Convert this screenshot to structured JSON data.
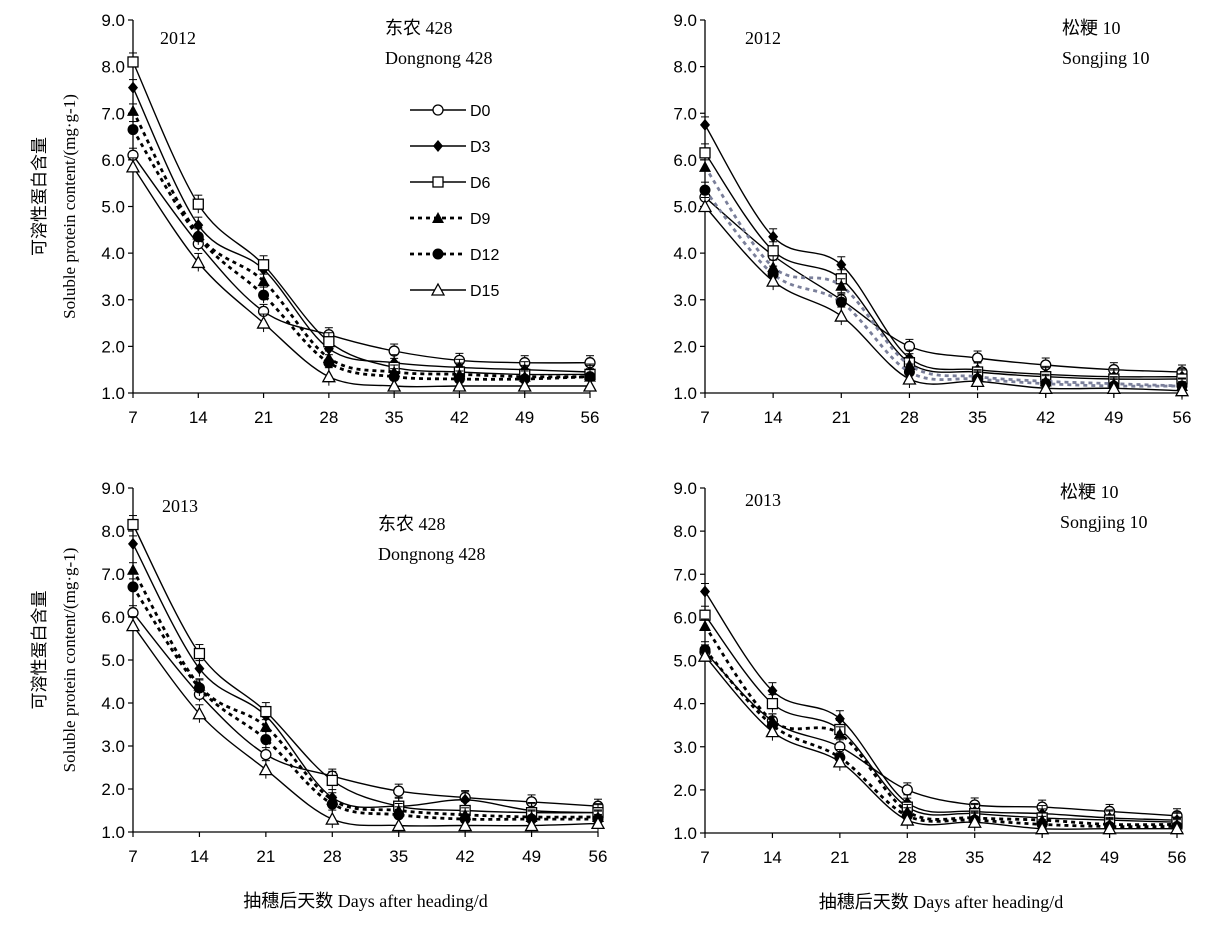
{
  "chart_data": [
    {
      "type": "line",
      "panel": "top-left",
      "year": "2012",
      "cultivar_cn": "东农 428",
      "cultivar_en": "Dongnong 428",
      "ylabel_cn": "可溶性蛋白含量",
      "ylabel_en": "Soluble protein content/(mg·g-1)",
      "xlabel": "",
      "x": [
        7,
        14,
        21,
        28,
        35,
        42,
        49,
        56
      ],
      "xlim": [
        7,
        56
      ],
      "ylim": [
        1.0,
        9.0
      ],
      "yticks": [
        "1.0",
        "2.0",
        "3.0",
        "4.0",
        "5.0",
        "6.0",
        "7.0",
        "8.0",
        "9.0"
      ],
      "legend": "top-center",
      "series": [
        {
          "name": "D0",
          "values": [
            6.1,
            4.2,
            2.75,
            2.25,
            1.9,
            1.7,
            1.65,
            1.65
          ]
        },
        {
          "name": "D3",
          "values": [
            7.55,
            4.6,
            3.65,
            1.95,
            1.65,
            1.55,
            1.5,
            1.45
          ]
        },
        {
          "name": "D6",
          "values": [
            8.1,
            5.05,
            3.75,
            2.1,
            1.55,
            1.45,
            1.4,
            1.4
          ]
        },
        {
          "name": "D9",
          "values": [
            7.05,
            4.4,
            3.4,
            1.75,
            1.45,
            1.4,
            1.35,
            1.35
          ]
        },
        {
          "name": "D12",
          "values": [
            6.65,
            4.35,
            3.1,
            1.65,
            1.35,
            1.3,
            1.3,
            1.35
          ]
        },
        {
          "name": "D15",
          "values": [
            5.85,
            3.8,
            2.5,
            1.35,
            1.15,
            1.15,
            1.15,
            1.15
          ]
        }
      ]
    },
    {
      "type": "line",
      "panel": "top-right",
      "year": "2012",
      "cultivar_cn": "松粳 10",
      "cultivar_en": "Songjing 10",
      "xlabel": "",
      "x": [
        7,
        14,
        21,
        28,
        35,
        42,
        49,
        56
      ],
      "xlim": [
        7,
        56
      ],
      "ylim": [
        1.0,
        9.0
      ],
      "yticks": [
        "1.0",
        "2.0",
        "3.0",
        "4.0",
        "5.0",
        "6.0",
        "7.0",
        "8.0",
        "9.0"
      ],
      "series": [
        {
          "name": "D0",
          "values": [
            5.2,
            3.95,
            3.0,
            2.0,
            1.75,
            1.6,
            1.5,
            1.45
          ]
        },
        {
          "name": "D3",
          "values": [
            6.75,
            4.35,
            3.75,
            1.75,
            1.5,
            1.4,
            1.35,
            1.35
          ]
        },
        {
          "name": "D6",
          "values": [
            6.15,
            4.05,
            3.45,
            1.65,
            1.45,
            1.35,
            1.3,
            1.3
          ]
        },
        {
          "name": "D9",
          "values": [
            5.85,
            3.7,
            3.3,
            1.6,
            1.35,
            1.25,
            1.2,
            1.15
          ]
        },
        {
          "name": "D12",
          "values": [
            5.35,
            3.55,
            2.95,
            1.45,
            1.3,
            1.2,
            1.15,
            1.15
          ]
        },
        {
          "name": "D15",
          "values": [
            5.0,
            3.4,
            2.65,
            1.3,
            1.25,
            1.1,
            1.1,
            1.05
          ]
        }
      ]
    },
    {
      "type": "line",
      "panel": "bottom-left",
      "year": "2013",
      "cultivar_cn": "东农 428",
      "cultivar_en": "Dongnong 428",
      "ylabel_cn": "可溶性蛋白含量",
      "ylabel_en": "Soluble protein content/(mg·g-1)",
      "xlabel": "抽穗后天数 Days after heading/d",
      "x": [
        7,
        14,
        21,
        28,
        35,
        42,
        49,
        56
      ],
      "xlim": [
        7,
        56
      ],
      "ylim": [
        1.0,
        9.0
      ],
      "yticks": [
        "1.0",
        "2.0",
        "3.0",
        "4.0",
        "5.0",
        "6.0",
        "7.0",
        "8.0",
        "9.0"
      ],
      "series": [
        {
          "name": "D0",
          "values": [
            6.1,
            4.2,
            2.8,
            2.3,
            1.95,
            1.8,
            1.7,
            1.6
          ]
        },
        {
          "name": "D3",
          "values": [
            7.7,
            4.8,
            3.7,
            1.8,
            1.6,
            1.75,
            1.5,
            1.45
          ]
        },
        {
          "name": "D6",
          "values": [
            8.15,
            5.15,
            3.8,
            2.2,
            1.6,
            1.5,
            1.45,
            1.45
          ]
        },
        {
          "name": "D9",
          "values": [
            7.1,
            4.4,
            3.45,
            1.75,
            1.5,
            1.4,
            1.35,
            1.35
          ]
        },
        {
          "name": "D12",
          "values": [
            6.7,
            4.35,
            3.15,
            1.65,
            1.4,
            1.3,
            1.3,
            1.3
          ]
        },
        {
          "name": "D15",
          "values": [
            5.8,
            3.75,
            2.45,
            1.3,
            1.15,
            1.15,
            1.15,
            1.2
          ]
        }
      ]
    },
    {
      "type": "line",
      "panel": "bottom-right",
      "year": "2013",
      "cultivar_cn": "松粳 10",
      "cultivar_en": "Songjing 10",
      "xlabel": "抽穗后天数 Days after heading/d",
      "x": [
        7,
        14,
        21,
        28,
        35,
        42,
        49,
        56
      ],
      "xlim": [
        7,
        56
      ],
      "ylim": [
        1.0,
        9.0
      ],
      "yticks": [
        "1.0",
        "2.0",
        "3.0",
        "4.0",
        "5.0",
        "6.0",
        "7.0",
        "8.0",
        "9.0"
      ],
      "series": [
        {
          "name": "D0",
          "values": [
            5.2,
            3.6,
            3.0,
            2.0,
            1.65,
            1.6,
            1.5,
            1.4
          ]
        },
        {
          "name": "D3",
          "values": [
            6.6,
            4.3,
            3.65,
            1.7,
            1.5,
            1.45,
            1.35,
            1.3
          ]
        },
        {
          "name": "D6",
          "values": [
            6.05,
            4.0,
            3.4,
            1.6,
            1.45,
            1.35,
            1.3,
            1.25
          ]
        },
        {
          "name": "D9",
          "values": [
            5.8,
            3.6,
            3.3,
            1.5,
            1.35,
            1.3,
            1.2,
            1.2
          ]
        },
        {
          "name": "D12",
          "values": [
            5.25,
            3.5,
            2.75,
            1.4,
            1.3,
            1.2,
            1.15,
            1.15
          ]
        },
        {
          "name": "D15",
          "values": [
            5.1,
            3.35,
            2.65,
            1.3,
            1.25,
            1.1,
            1.1,
            1.1
          ]
        }
      ]
    }
  ],
  "series_styles": {
    "D0": {
      "marker": "circle-open",
      "dash": "solid",
      "color": "#000000"
    },
    "D3": {
      "marker": "diamond-filled",
      "dash": "solid",
      "color": "#000000"
    },
    "D6": {
      "marker": "square-open",
      "dash": "solid",
      "color": "#000000"
    },
    "D9": {
      "marker": "triangle-filled",
      "dash": "dotted",
      "color": "#000000"
    },
    "D12": {
      "marker": "circle-filled",
      "dash": "dotted",
      "color": "#000000"
    },
    "D15": {
      "marker": "triangle-open",
      "dash": "solid",
      "color": "#000000"
    }
  },
  "top_right_dashed_color": "#7a7f9a"
}
